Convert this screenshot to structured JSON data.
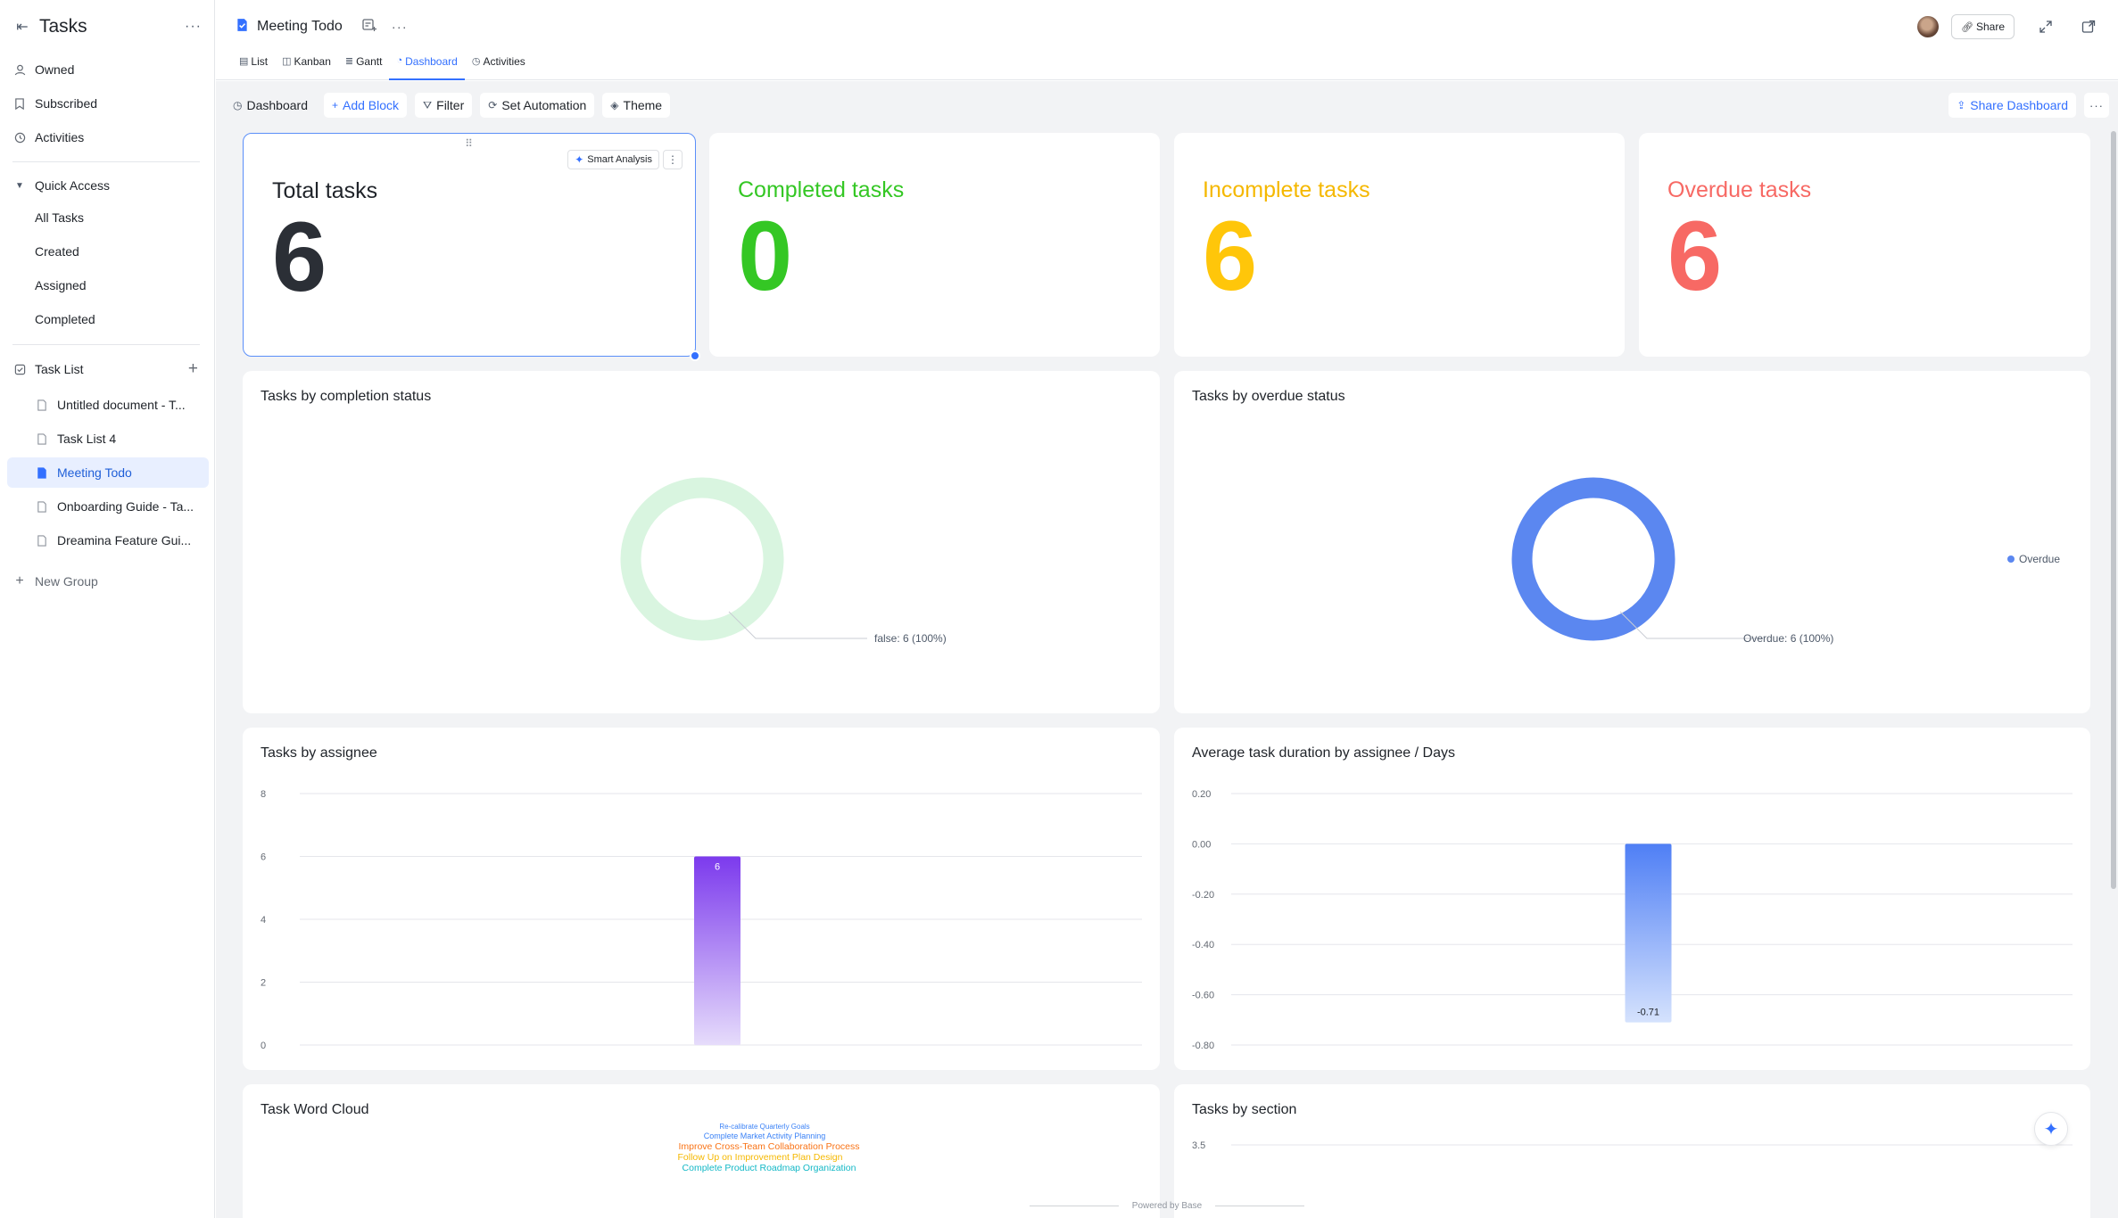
{
  "sidebar": {
    "title": "Tasks",
    "more_label": "···",
    "nav": [
      {
        "label": "Owned",
        "icon": "person-icon"
      },
      {
        "label": "Subscribed",
        "icon": "bookmark-icon"
      },
      {
        "label": "Activities",
        "icon": "history-icon"
      }
    ],
    "quick_access": {
      "label": "Quick Access",
      "items": [
        "All Tasks",
        "Created",
        "Assigned",
        "Completed"
      ]
    },
    "task_list": {
      "label": "Task List",
      "items": [
        {
          "label": "Untitled document - T...",
          "active": false
        },
        {
          "label": "Task List 4",
          "active": false
        },
        {
          "label": "Meeting Todo",
          "active": true
        },
        {
          "label": "Onboarding Guide - Ta...",
          "active": false
        },
        {
          "label": "Dreamina Feature Gui...",
          "active": false
        }
      ]
    },
    "new_group": "New Group"
  },
  "header": {
    "doc_title": "Meeting Todo",
    "more_label": "···",
    "tabs": [
      {
        "label": "List",
        "icon": "grid-icon",
        "active": false
      },
      {
        "label": "Kanban",
        "icon": "kanban-icon",
        "active": false
      },
      {
        "label": "Gantt",
        "icon": "gantt-icon",
        "active": false
      },
      {
        "label": "Dashboard",
        "icon": "dashboard-icon",
        "active": true
      },
      {
        "label": "Activities",
        "icon": "history-icon",
        "active": false
      }
    ],
    "share_label": "Share"
  },
  "toolbar": {
    "dashboard_label": "Dashboard",
    "add_block_label": "Add Block",
    "filter_label": "Filter",
    "set_automation_label": "Set Automation",
    "theme_label": "Theme",
    "share_dashboard_label": "Share Dashboard",
    "more_label": "···"
  },
  "stats": [
    {
      "title": "Total tasks",
      "value": "6",
      "color": "#2b2f36",
      "smart_label": "Smart Analysis"
    },
    {
      "title": "Completed tasks",
      "value": "0",
      "color": "#34c724"
    },
    {
      "title": "Incomplete tasks",
      "value": "6",
      "color": "#ffc60a"
    },
    {
      "title": "Overdue tasks",
      "value": "6",
      "color": "#f76964"
    }
  ],
  "charts": {
    "completion": {
      "title": "Tasks by completion status",
      "label": "false: 6 (100%)"
    },
    "overdue": {
      "title": "Tasks by overdue status",
      "label": "Overdue: 6 (100%)",
      "legend": "Overdue"
    },
    "assignee": {
      "title": "Tasks by assignee",
      "bar_label": "6"
    },
    "duration": {
      "title": "Average task duration by assignee / Days",
      "bar_label": "-0.71"
    },
    "wordcloud": {
      "title": "Task Word Cloud"
    },
    "section": {
      "title": "Tasks by section"
    }
  },
  "chart_data": [
    {
      "type": "pie",
      "title": "Tasks by completion status",
      "slices": [
        {
          "label": "false",
          "value": 6,
          "percent": 100
        }
      ],
      "color": "#d9f5e0"
    },
    {
      "type": "pie",
      "title": "Tasks by overdue status",
      "slices": [
        {
          "label": "Overdue",
          "value": 6,
          "percent": 100
        }
      ],
      "legend": [
        "Overdue"
      ],
      "legend_position": "right",
      "color": "#5b87f0"
    },
    {
      "type": "bar",
      "title": "Tasks by assignee",
      "categories": [
        ""
      ],
      "values": [
        6
      ],
      "yticks": [
        "8",
        "6",
        "4",
        "2",
        "0"
      ],
      "ylim": [
        0,
        8
      ],
      "color": "#8b5cf6",
      "grid": true
    },
    {
      "type": "bar",
      "title": "Average task duration by assignee / Days",
      "categories": [
        ""
      ],
      "values": [
        -0.71
      ],
      "yticks": [
        "0.20",
        "0.00",
        "-0.20",
        "-0.40",
        "-0.60",
        "-0.80"
      ],
      "ylim": [
        -0.8,
        0.2
      ],
      "color": "#5b87f0",
      "grid": true
    },
    {
      "type": "bar",
      "title": "Tasks by section",
      "yticks": [
        "3.5"
      ],
      "grid": true
    }
  ],
  "wordcloud_words": [
    {
      "text": "Re-calibrate Quarterly Goals",
      "color": "#3b82f6"
    },
    {
      "text": "Complete Market Activity Planning",
      "color": "#3b82f6"
    },
    {
      "text": "Improve Cross-Team Collaboration Process",
      "color": "#f97316"
    },
    {
      "text": "Follow Up on Improvement Plan Design",
      "color": "#f5b800"
    },
    {
      "text": "Complete Product Roadmap Organization",
      "color": "#14b8c6"
    }
  ],
  "footer": {
    "label": "Powered by Base"
  }
}
